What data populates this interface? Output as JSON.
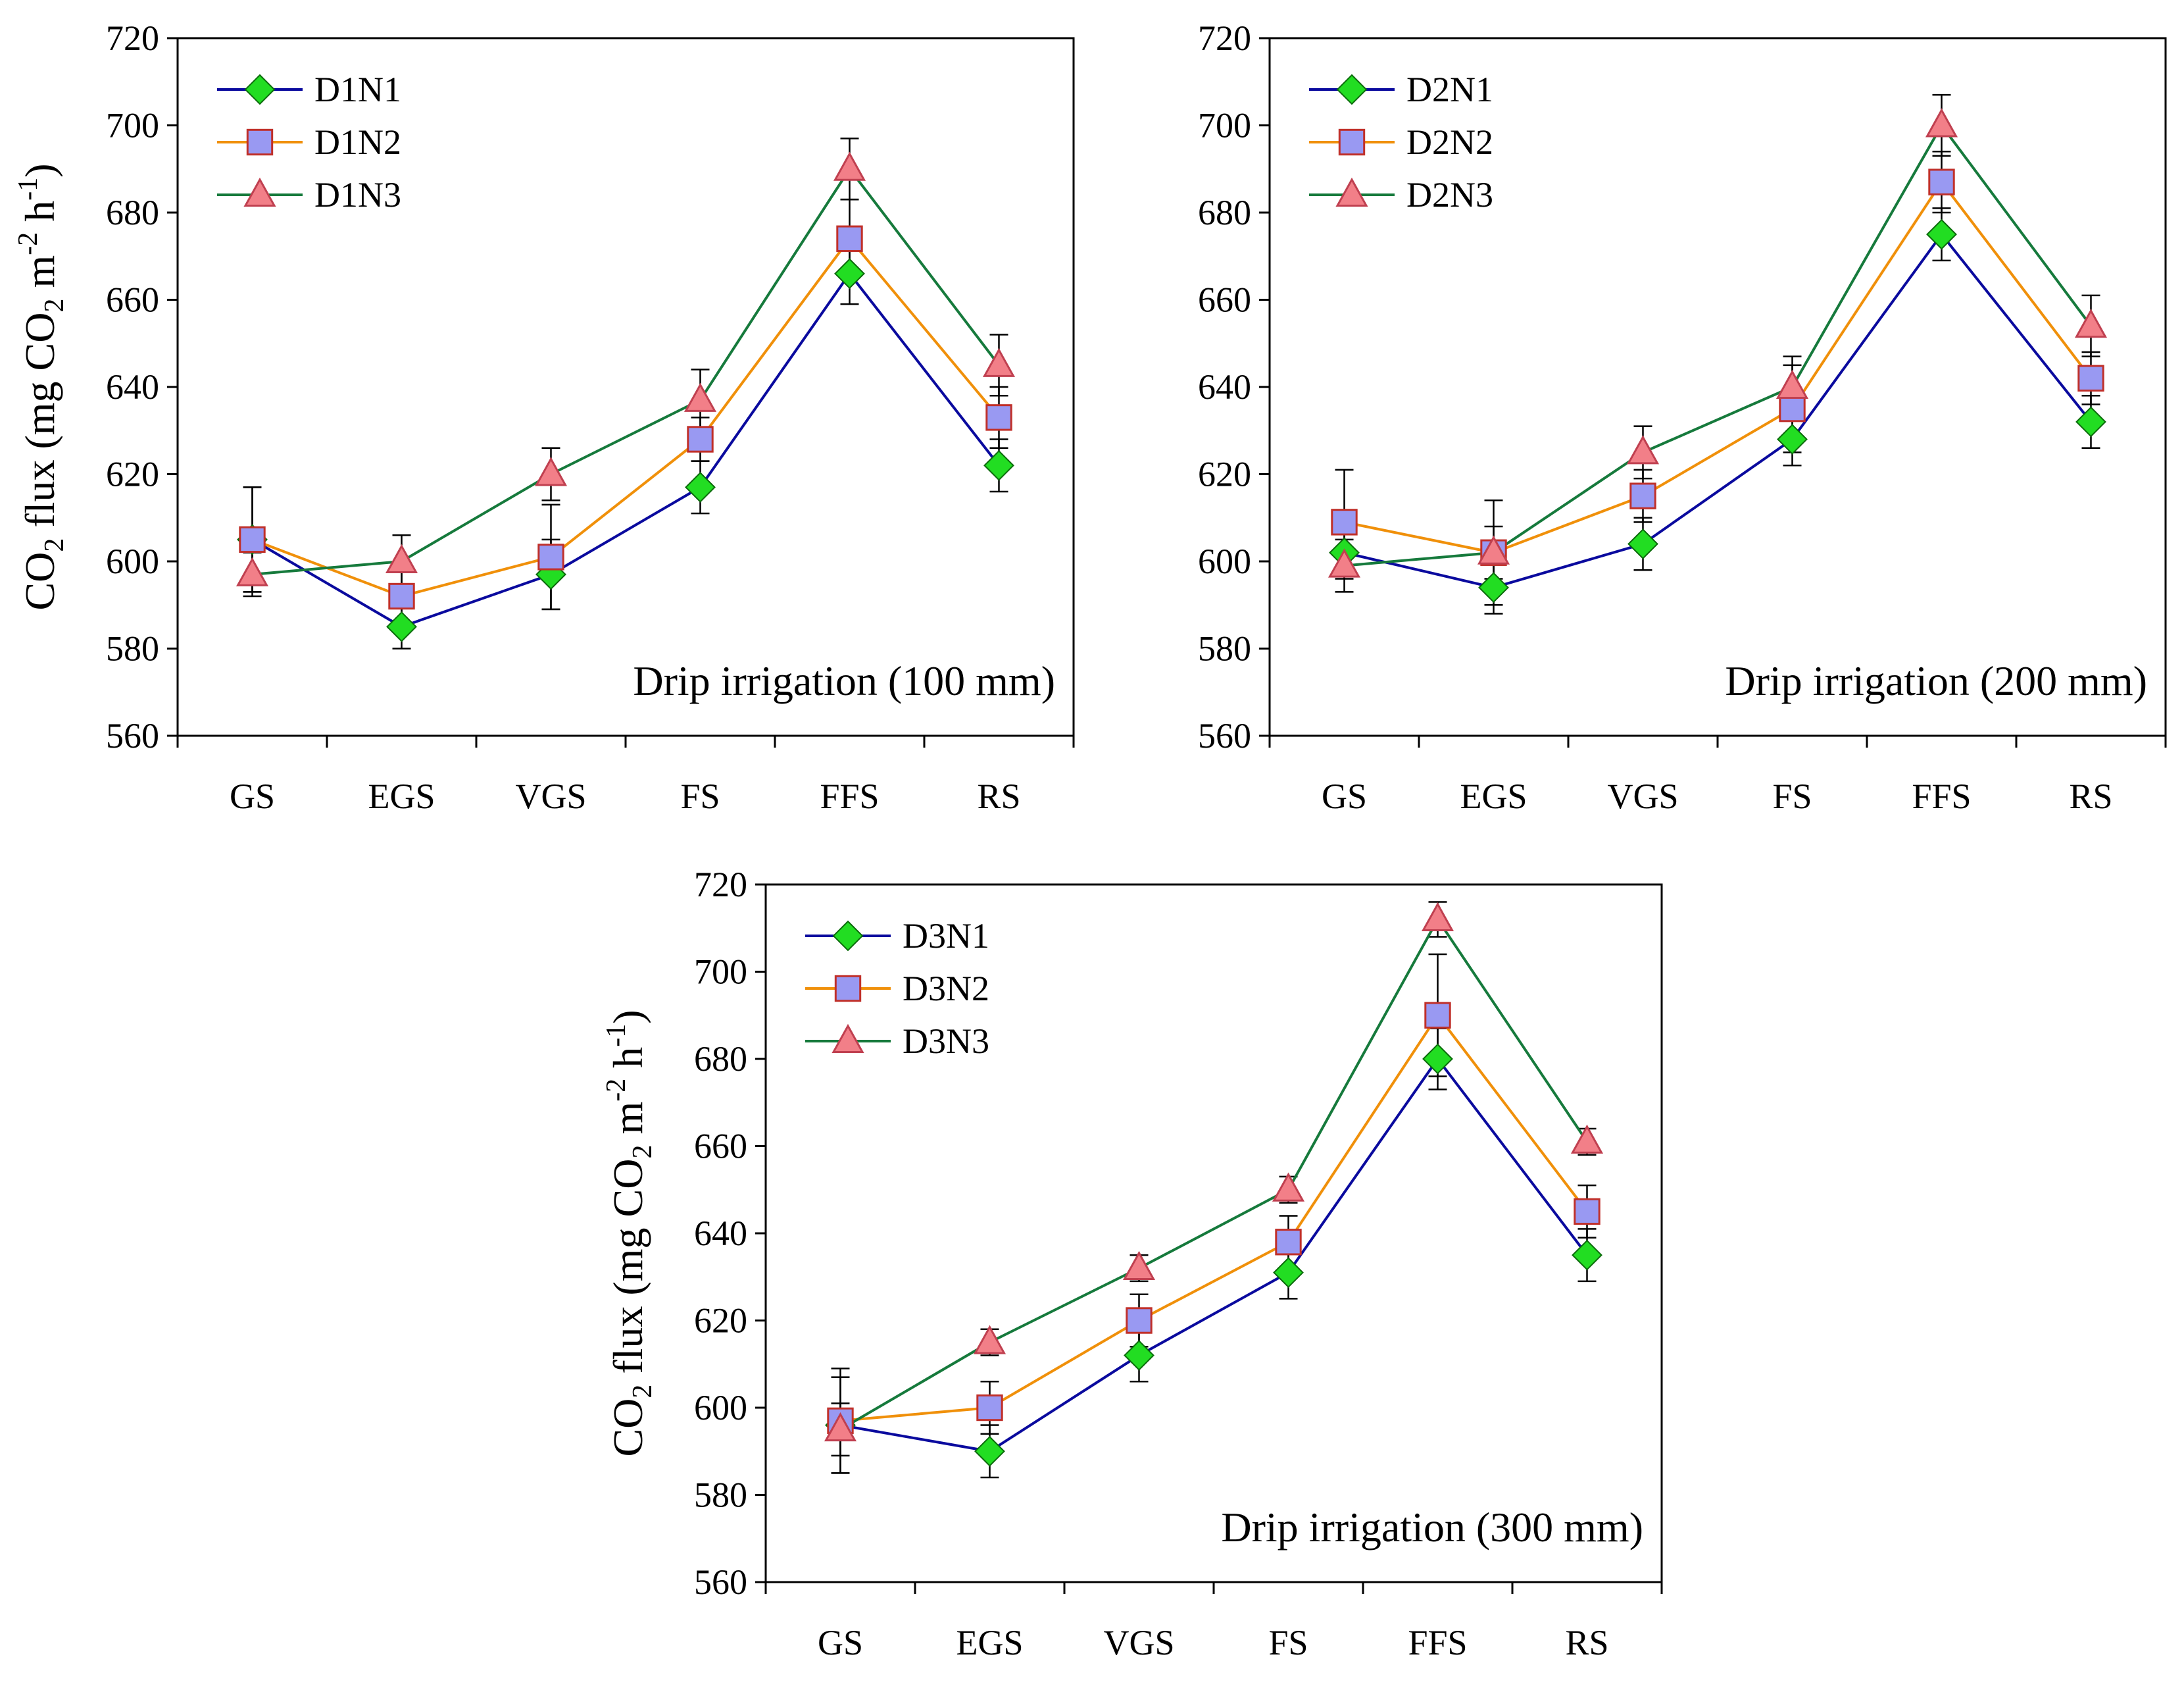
{
  "chart_data": [
    {
      "type": "line",
      "categories": [
        "GS",
        "EGS",
        "VGS",
        "FS",
        "FFS",
        "RS"
      ],
      "ylabel": {
        "main": "CO",
        "sub1": "2",
        "mid": " flux (mg CO",
        "sub2": "2",
        "mid2": " m",
        "sup1": "-2",
        "mid3": " h",
        "sup2": "-1",
        "end": ")"
      },
      "annotation": "Drip irrigation (100 mm)",
      "ylim": [
        560,
        720
      ],
      "yticks": [
        "560",
        "580",
        "600",
        "620",
        "640",
        "660",
        "680",
        "700",
        "720"
      ],
      "legend_position": "top-left",
      "series": [
        {
          "name": "D1N1",
          "marker": "diamond",
          "line_color": "#0a0a9e",
          "marker_color": "#22dd22",
          "values": [
            605,
            585,
            597,
            617,
            666,
            622
          ],
          "err": [
            12,
            5,
            8,
            6,
            7,
            6
          ]
        },
        {
          "name": "D1N2",
          "marker": "square",
          "line_color": "#f0900a",
          "marker_color": "#9999f2",
          "values": [
            605,
            592,
            601,
            628,
            674,
            633
          ],
          "err": [
            12,
            6,
            12,
            5,
            9,
            7
          ]
        },
        {
          "name": "D1N3",
          "marker": "triangle",
          "line_color": "#167a3c",
          "marker_color": "#f27f88",
          "values": [
            597,
            600,
            620,
            637,
            690,
            645
          ],
          "err": [
            5,
            6,
            6,
            7,
            7,
            7
          ]
        }
      ]
    },
    {
      "type": "line",
      "categories": [
        "GS",
        "EGS",
        "VGS",
        "FS",
        "FFS",
        "RS"
      ],
      "ylabel": null,
      "annotation": "Drip irrigation (200 mm)",
      "ylim": [
        560,
        720
      ],
      "yticks": [
        "560",
        "580",
        "600",
        "620",
        "640",
        "660",
        "680",
        "700",
        "720"
      ],
      "legend_position": "top-left",
      "series": [
        {
          "name": "D2N1",
          "marker": "diamond",
          "line_color": "#0a0a9e",
          "marker_color": "#22dd22",
          "values": [
            602,
            594,
            604,
            628,
            675,
            632
          ],
          "err": [
            6,
            6,
            6,
            6,
            6,
            6
          ]
        },
        {
          "name": "D2N2",
          "marker": "square",
          "line_color": "#f0900a",
          "marker_color": "#9999f2",
          "values": [
            609,
            602,
            615,
            635,
            687,
            642
          ],
          "err": [
            12,
            6,
            6,
            10,
            7,
            6
          ]
        },
        {
          "name": "D2N3",
          "marker": "triangle",
          "line_color": "#167a3c",
          "marker_color": "#f27f88",
          "values": [
            599,
            602,
            625,
            640,
            700,
            654
          ],
          "err": [
            6,
            12,
            6,
            7,
            7,
            7
          ]
        }
      ]
    },
    {
      "type": "line",
      "categories": [
        "GS",
        "EGS",
        "VGS",
        "FS",
        "FFS",
        "RS"
      ],
      "ylabel": {
        "main": "CO",
        "sub1": "2",
        "mid": " flux (mg CO",
        "sub2": "2",
        "mid2": " m",
        "sup1": "-2",
        "mid3": " h",
        "sup2": "-1",
        "end": ")"
      },
      "annotation": "Drip irrigation (300 mm)",
      "ylim": [
        560,
        720
      ],
      "yticks": [
        "560",
        "580",
        "600",
        "620",
        "640",
        "660",
        "680",
        "700",
        "720"
      ],
      "legend_position": "top-left",
      "series": [
        {
          "name": "D3N1",
          "marker": "diamond",
          "line_color": "#0a0a9e",
          "marker_color": "#22dd22",
          "values": [
            596,
            590,
            612,
            631,
            680,
            635
          ],
          "err": [
            11,
            6,
            6,
            6,
            7,
            6
          ]
        },
        {
          "name": "D3N2",
          "marker": "square",
          "line_color": "#f0900a",
          "marker_color": "#9999f2",
          "values": [
            597,
            600,
            620,
            638,
            690,
            645
          ],
          "err": [
            12,
            6,
            6,
            6,
            14,
            6
          ]
        },
        {
          "name": "D3N3",
          "marker": "triangle",
          "line_color": "#167a3c",
          "marker_color": "#f27f88",
          "values": [
            595,
            615,
            632,
            650,
            712,
            661
          ],
          "err": [
            6,
            3,
            3,
            3,
            4,
            3
          ]
        }
      ]
    }
  ]
}
